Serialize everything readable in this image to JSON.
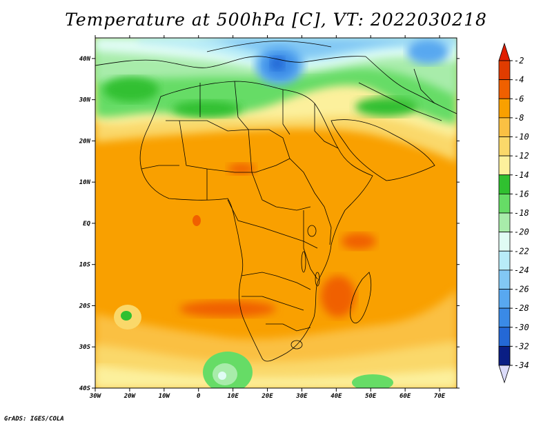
{
  "title": "Temperature at 500hPa [C], VT: 2022030218",
  "credit": "GrADS: IGES/COLA",
  "map": {
    "region": "Africa",
    "projection": "latlon",
    "lon_range": [
      -30,
      75
    ],
    "lat_range": [
      -40,
      45
    ],
    "lon_ticks": [
      {
        "value": -30,
        "label": "30W"
      },
      {
        "value": -20,
        "label": "20W"
      },
      {
        "value": -10,
        "label": "10W"
      },
      {
        "value": 0,
        "label": "0"
      },
      {
        "value": 10,
        "label": "10E"
      },
      {
        "value": 20,
        "label": "20E"
      },
      {
        "value": 30,
        "label": "30E"
      },
      {
        "value": 40,
        "label": "40E"
      },
      {
        "value": 50,
        "label": "50E"
      },
      {
        "value": 60,
        "label": "60E"
      },
      {
        "value": 70,
        "label": "70E"
      }
    ],
    "lat_ticks": [
      {
        "value": 40,
        "label": "40N"
      },
      {
        "value": 30,
        "label": "30N"
      },
      {
        "value": 20,
        "label": "20N"
      },
      {
        "value": 10,
        "label": "10N"
      },
      {
        "value": 0,
        "label": "EQ"
      },
      {
        "value": -10,
        "label": "10S"
      },
      {
        "value": -20,
        "label": "20S"
      },
      {
        "value": -30,
        "label": "30S"
      },
      {
        "value": -40,
        "label": "40S"
      }
    ]
  },
  "colorbar": {
    "levels": [
      {
        "label": "-2",
        "color": "#e03c00"
      },
      {
        "label": "-4",
        "color": "#f06000"
      },
      {
        "label": "-6",
        "color": "#f9a000"
      },
      {
        "label": "-8",
        "color": "#fac043"
      },
      {
        "label": "-10",
        "color": "#fad86a"
      },
      {
        "label": "-12",
        "color": "#fcf09c"
      },
      {
        "label": "-14",
        "color": "#30c030"
      },
      {
        "label": "-16",
        "color": "#66dc66"
      },
      {
        "label": "-18",
        "color": "#a8ecaa"
      },
      {
        "label": "-20",
        "color": "#e0fcf4"
      },
      {
        "label": "-22",
        "color": "#b8ecf8"
      },
      {
        "label": "-24",
        "color": "#82c8f4"
      },
      {
        "label": "-26",
        "color": "#58a8f0"
      },
      {
        "label": "-28",
        "color": "#3a8ae6"
      },
      {
        "label": "-30",
        "color": "#2468d6"
      },
      {
        "label": "-32",
        "color": "#1046b6"
      },
      {
        "label": "-34",
        "color": "#0a1e84"
      }
    ],
    "over_color": "#e01e00",
    "under_color": "#dcdcfa"
  }
}
